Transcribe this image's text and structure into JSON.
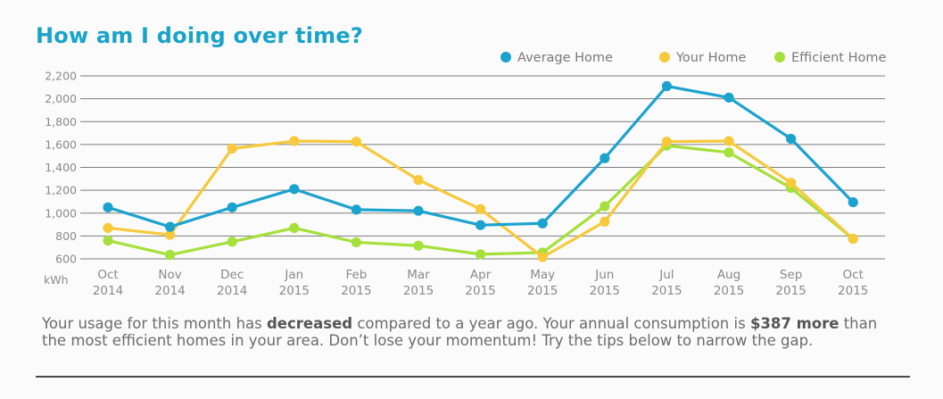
{
  "title": "How am I doing over time?",
  "summary": {
    "part1": "Your usage for this month has ",
    "bold1": "decreased",
    "part2": " compared to a year ago. Your annual consumption is ",
    "bold2": "$387 more",
    "part3": " than the most efficient homes in your area. Don’t lose your momentum! Try the tips below to narrow the gap."
  },
  "chart_data": {
    "type": "line",
    "categories": [
      [
        "Oct",
        "2014"
      ],
      [
        "Nov",
        "2014"
      ],
      [
        "Dec",
        "2014"
      ],
      [
        "Jan",
        "2015"
      ],
      [
        "Feb",
        "2015"
      ],
      [
        "Mar",
        "2015"
      ],
      [
        "Apr",
        "2015"
      ],
      [
        "May",
        "2015"
      ],
      [
        "Jun",
        "2015"
      ],
      [
        "Jul",
        "2015"
      ],
      [
        "Aug",
        "2015"
      ],
      [
        "Sep",
        "2015"
      ],
      [
        "Oct",
        "2015"
      ]
    ],
    "ylabel": "kWh",
    "ylim": [
      600,
      2200
    ],
    "yticks": [
      600,
      800,
      1000,
      1200,
      1400,
      1600,
      1800,
      2000,
      2200
    ],
    "ytick_labels": [
      "600",
      "800",
      "1,000",
      "1,200",
      "1,400",
      "1,600",
      "1,800",
      "2,000",
      "2,200"
    ],
    "grid": true,
    "legend_position": "top-right",
    "series": [
      {
        "name": "Average Home",
        "color": "#1ba3cf",
        "values": [
          1050,
          880,
          1050,
          1210,
          1030,
          1020,
          895,
          910,
          1480,
          2110,
          2010,
          1650,
          1095
        ]
      },
      {
        "name": "Your Home",
        "color": "#f7c93b",
        "values": [
          870,
          810,
          1565,
          1630,
          1625,
          1290,
          1035,
          615,
          925,
          1625,
          1630,
          1265,
          775
        ]
      },
      {
        "name": "Efficient Home",
        "color": "#a6e03a",
        "values": [
          760,
          635,
          750,
          870,
          745,
          715,
          640,
          655,
          1060,
          1590,
          1530,
          1220,
          775
        ]
      }
    ]
  }
}
